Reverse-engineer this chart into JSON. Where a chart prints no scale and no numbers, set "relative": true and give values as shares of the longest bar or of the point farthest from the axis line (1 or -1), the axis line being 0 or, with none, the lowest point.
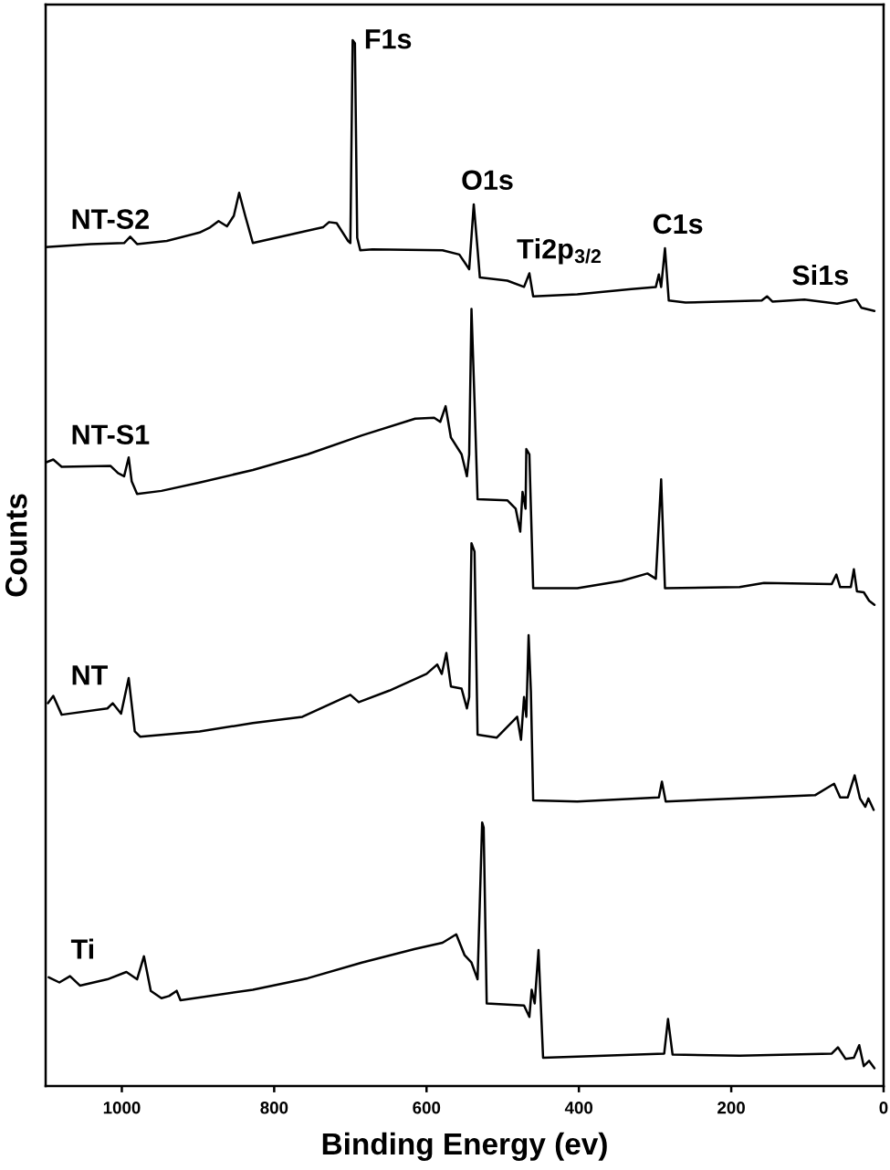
{
  "chart_data": {
    "type": "line",
    "relative": true,
    "xlabel": "Binding Energy (ev)",
    "ylabel": "Counts",
    "xlim": [
      1100,
      0
    ],
    "xticks": [
      1000,
      800,
      600,
      400,
      200,
      0
    ],
    "tick_labels": "x",
    "line_style": "solid",
    "series": [
      {
        "name": "NT-S2",
        "color": "#000000",
        "x": [
          1100,
          1041,
          997,
          989,
          980,
          941,
          898,
          884,
          873,
          862,
          853,
          846,
          838,
          828,
          792,
          736,
          728,
          718,
          703,
          700,
          697,
          694,
          691,
          687,
          671,
          579,
          557,
          544,
          538,
          533,
          530,
          494,
          472,
          465,
          460,
          402,
          331,
          299,
          295,
          292,
          287,
          282,
          260,
          160,
          153,
          146,
          104,
          61,
          36,
          29,
          12
        ],
        "values": [
          0.802,
          0.805,
          0.806,
          0.812,
          0.805,
          0.808,
          0.816,
          0.821,
          0.827,
          0.822,
          0.832,
          0.854,
          0.832,
          0.806,
          0.812,
          0.821,
          0.826,
          0.825,
          0.808,
          0.806,
          1.0,
          0.997,
          0.811,
          0.799,
          0.8,
          0.799,
          0.795,
          0.781,
          0.843,
          0.8,
          0.773,
          0.77,
          0.764,
          0.777,
          0.755,
          0.757,
          0.762,
          0.764,
          0.776,
          0.764,
          0.801,
          0.751,
          0.749,
          0.751,
          0.755,
          0.75,
          0.752,
          0.748,
          0.752,
          0.744,
          0.741
        ]
      },
      {
        "name": "NT-S1",
        "color": "#000000",
        "x": [
          1100,
          1090,
          1079,
          1015,
          1005,
          997,
          991,
          987,
          980,
          948,
          898,
          828,
          756,
          685,
          615,
          590,
          582,
          575,
          568,
          554,
          547,
          544,
          541,
          537,
          533,
          494,
          483,
          477,
          474,
          470,
          469,
          465,
          460,
          402,
          344,
          310,
          299,
          292,
          287,
          189,
          157,
          68,
          62,
          57,
          43,
          39,
          35,
          26,
          19,
          12
        ],
        "values": [
          0.596,
          0.599,
          0.592,
          0.593,
          0.586,
          0.583,
          0.601,
          0.578,
          0.566,
          0.569,
          0.577,
          0.589,
          0.604,
          0.622,
          0.638,
          0.639,
          0.635,
          0.65,
          0.62,
          0.604,
          0.583,
          0.604,
          0.743,
          0.655,
          0.561,
          0.56,
          0.552,
          0.53,
          0.568,
          0.552,
          0.609,
          0.604,
          0.476,
          0.476,
          0.483,
          0.49,
          0.485,
          0.58,
          0.476,
          0.477,
          0.481,
          0.48,
          0.489,
          0.477,
          0.477,
          0.494,
          0.473,
          0.472,
          0.464,
          0.46
        ]
      },
      {
        "name": "NT",
        "color": "#000000",
        "x": [
          1097,
          1090,
          1079,
          1019,
          1012,
          1001,
          991,
          983,
          976,
          898,
          828,
          763,
          700,
          689,
          649,
          600,
          586,
          580,
          574,
          568,
          554,
          547,
          544,
          541,
          537,
          533,
          508,
          481,
          476,
          472,
          469,
          466,
          463,
          460,
          402,
          295,
          291,
          286,
          189,
          90,
          65,
          57,
          47,
          38,
          31,
          24,
          20,
          13
        ],
        "values": [
          0.366,
          0.373,
          0.355,
          0.361,
          0.366,
          0.356,
          0.39,
          0.339,
          0.334,
          0.339,
          0.347,
          0.353,
          0.374,
          0.367,
          0.378,
          0.394,
          0.403,
          0.394,
          0.414,
          0.382,
          0.38,
          0.361,
          0.372,
          0.519,
          0.511,
          0.336,
          0.333,
          0.353,
          0.331,
          0.372,
          0.353,
          0.431,
          0.377,
          0.273,
          0.272,
          0.276,
          0.291,
          0.272,
          0.275,
          0.278,
          0.289,
          0.276,
          0.276,
          0.297,
          0.275,
          0.267,
          0.275,
          0.264
        ]
      },
      {
        "name": "Ti",
        "color": "#000000",
        "x": [
          1096,
          1082,
          1068,
          1055,
          1019,
          994,
          980,
          971,
          962,
          948,
          938,
          928,
          923,
          828,
          756,
          685,
          615,
          579,
          561,
          550,
          541,
          533,
          527,
          525,
          521,
          472,
          465,
          462,
          458,
          453,
          447,
          402,
          288,
          283,
          277,
          189,
          68,
          60,
          50,
          39,
          32,
          26,
          19,
          12
        ],
        "values": [
          0.104,
          0.099,
          0.105,
          0.096,
          0.102,
          0.109,
          0.102,
          0.124,
          0.091,
          0.084,
          0.086,
          0.091,
          0.082,
          0.092,
          0.103,
          0.118,
          0.131,
          0.137,
          0.145,
          0.125,
          0.118,
          0.102,
          0.252,
          0.247,
          0.079,
          0.077,
          0.066,
          0.092,
          0.079,
          0.13,
          0.027,
          0.028,
          0.031,
          0.064,
          0.03,
          0.029,
          0.031,
          0.037,
          0.026,
          0.027,
          0.039,
          0.019,
          0.024,
          0.017
        ]
      }
    ],
    "annotations": [
      {
        "text": "F1s",
        "x": 697,
        "y": 1.0
      },
      {
        "text": "O1s",
        "x": 538,
        "y": 0.843
      },
      {
        "text": "Ti2p$_{3/2}$",
        "x": 465,
        "y": 0.777
      },
      {
        "text": "C1s",
        "x": 287,
        "y": 0.801
      },
      {
        "text": "Si1s",
        "x": 104,
        "y": 0.752
      }
    ]
  }
}
